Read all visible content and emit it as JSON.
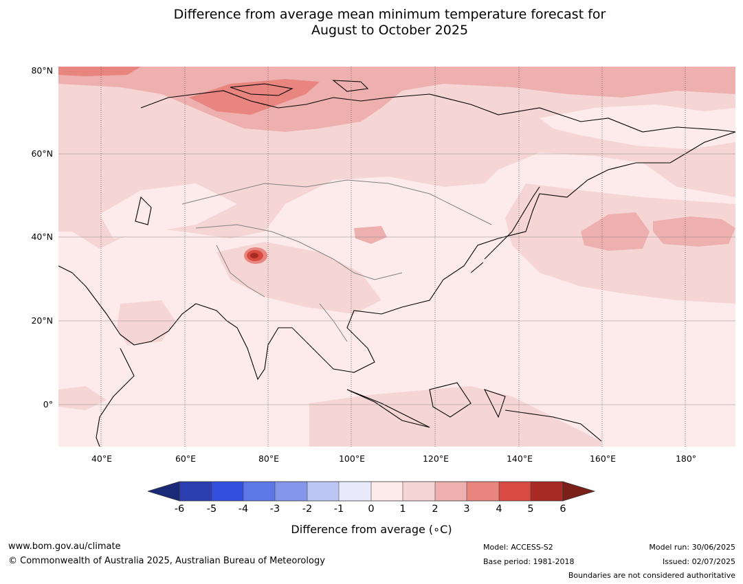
{
  "title": {
    "line1": "Difference from average mean minimum temperature forecast for",
    "line2": "August to October 2025"
  },
  "map": {
    "lat_labels": [
      "80°N",
      "60°N",
      "40°N",
      "20°N",
      "0°"
    ],
    "lon_labels": [
      "40°E",
      "60°E",
      "80°E",
      "100°E",
      "120°E",
      "140°E",
      "160°E",
      "180°"
    ],
    "colors": {
      "ocean_base": "#fcebea",
      "land_base": "#f6d6d5",
      "anom_1_2": "#f6d6d5",
      "anom_2_3": "#eeb0af",
      "anom_3_4": "#e8857f",
      "anom_4_5": "#d84a42",
      "anom_5_6": "#a82a24"
    }
  },
  "colorbar": {
    "ticks": [
      "-6",
      "-5",
      "-4",
      "-3",
      "-2",
      "-1",
      "0",
      "1",
      "2",
      "3",
      "4",
      "5",
      "6"
    ],
    "colors": [
      "#1a2a78",
      "#2a3eb0",
      "#334fe0",
      "#5e77e6",
      "#8496ea",
      "#bdc6f3",
      "#e9ebfa",
      "#fcebea",
      "#f6d6d5",
      "#eeb0af",
      "#e8857f",
      "#d84a42",
      "#a82a24",
      "#7a2018"
    ],
    "label": "Difference from average (∘C)"
  },
  "footer": {
    "url": "www.bom.gov.au/climate",
    "copyright": "© Commonwealth of Australia 2025, Australian Bureau of Meteorology",
    "model": "Model: ACCESS-S2",
    "base_period": "Base period: 1981-2018",
    "model_run": "Model run: 30/06/2025",
    "issued": "Issued: 02/07/2025",
    "disclaimer": "Boundaries are not considered authoritative"
  }
}
